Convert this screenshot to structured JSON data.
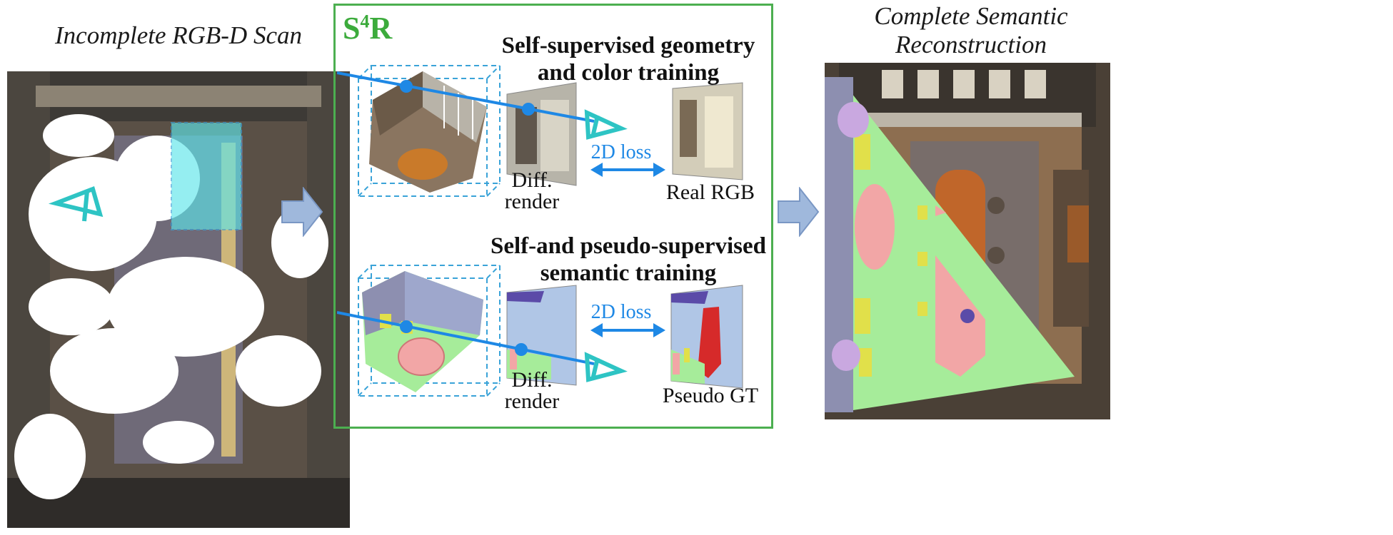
{
  "left_panel": {
    "title": "Incomplete RGB-D Scan"
  },
  "middle_panel": {
    "brand_base": "S",
    "brand_sup": "4",
    "brand_tail": "R",
    "top": {
      "title_line1": "Self-supervised geometry",
      "title_line2": "and color training",
      "loss_label": "2D loss",
      "render_line1": "Diff.",
      "render_line2": "render",
      "target_label": "Real RGB"
    },
    "bottom": {
      "title_line1": "Self-and pseudo-supervised",
      "title_line2": "semantic training",
      "loss_label": "2D loss",
      "render_line1": "Diff.",
      "render_line2": "render",
      "target_label": "Pseudo GT"
    }
  },
  "right_panel": {
    "title_line1": "Complete Semantic",
    "title_line2": "Reconstruction"
  },
  "colors": {
    "frame_green": "#4caf50",
    "ray_blue": "#1e88e5",
    "camera_cyan": "#2ec4c4",
    "arrow_fill": "#9fb8dc",
    "semantic_floor": "#a6ec9a",
    "semantic_wall": "#b0c6e6",
    "semantic_table": "#f2a6a6"
  }
}
